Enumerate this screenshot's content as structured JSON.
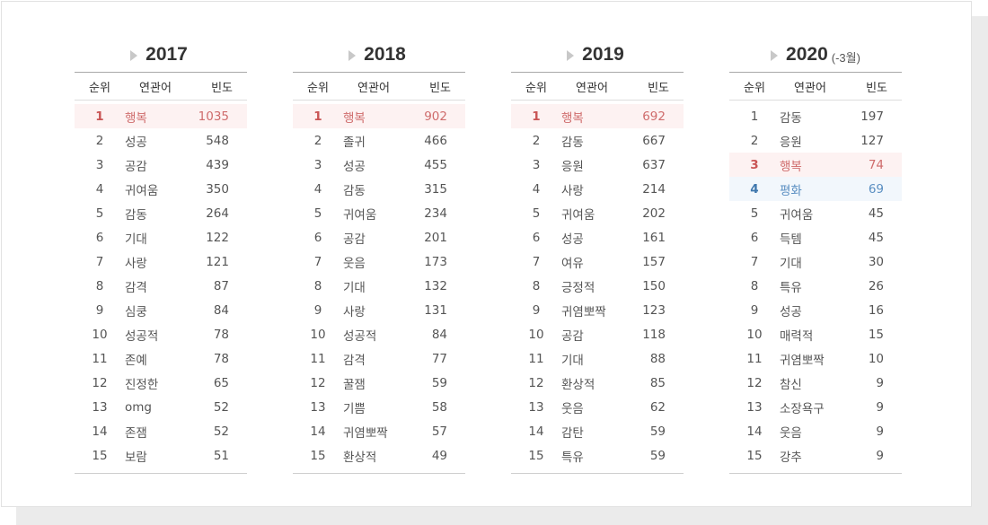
{
  "columns": {
    "rank": "순위",
    "word": "연관어",
    "freq": "빈도"
  },
  "colors": {
    "highlight_red": "#cf6c6c",
    "highlight_blue": "#5b8fc2"
  },
  "panels": [
    {
      "year": "2017",
      "note": "",
      "rows": [
        {
          "rank": "1",
          "word": "행복",
          "freq": "1035",
          "hl": "red"
        },
        {
          "rank": "2",
          "word": "성공",
          "freq": "548"
        },
        {
          "rank": "3",
          "word": "공감",
          "freq": "439"
        },
        {
          "rank": "4",
          "word": "귀여움",
          "freq": "350"
        },
        {
          "rank": "5",
          "word": "감동",
          "freq": "264"
        },
        {
          "rank": "6",
          "word": "기대",
          "freq": "122"
        },
        {
          "rank": "7",
          "word": "사랑",
          "freq": "121"
        },
        {
          "rank": "8",
          "word": "감격",
          "freq": "87"
        },
        {
          "rank": "9",
          "word": "심쿵",
          "freq": "84"
        },
        {
          "rank": "10",
          "word": "성공적",
          "freq": "78"
        },
        {
          "rank": "11",
          "word": "존예",
          "freq": "78"
        },
        {
          "rank": "12",
          "word": "진정한",
          "freq": "65"
        },
        {
          "rank": "13",
          "word": "omg",
          "freq": "52"
        },
        {
          "rank": "14",
          "word": "존잼",
          "freq": "52"
        },
        {
          "rank": "15",
          "word": "보람",
          "freq": "51"
        }
      ]
    },
    {
      "year": "2018",
      "note": "",
      "rows": [
        {
          "rank": "1",
          "word": "행복",
          "freq": "902",
          "hl": "red"
        },
        {
          "rank": "2",
          "word": "졸귀",
          "freq": "466"
        },
        {
          "rank": "3",
          "word": "성공",
          "freq": "455"
        },
        {
          "rank": "4",
          "word": "감동",
          "freq": "315"
        },
        {
          "rank": "5",
          "word": "귀여움",
          "freq": "234"
        },
        {
          "rank": "6",
          "word": "공감",
          "freq": "201"
        },
        {
          "rank": "7",
          "word": "웃음",
          "freq": "173"
        },
        {
          "rank": "8",
          "word": "기대",
          "freq": "132"
        },
        {
          "rank": "9",
          "word": "사랑",
          "freq": "131"
        },
        {
          "rank": "10",
          "word": "성공적",
          "freq": "84"
        },
        {
          "rank": "11",
          "word": "감격",
          "freq": "77"
        },
        {
          "rank": "12",
          "word": "꿀잼",
          "freq": "59"
        },
        {
          "rank": "13",
          "word": "기쁨",
          "freq": "58"
        },
        {
          "rank": "14",
          "word": "귀염뽀짝",
          "freq": "57"
        },
        {
          "rank": "15",
          "word": "환상적",
          "freq": "49"
        }
      ]
    },
    {
      "year": "2019",
      "note": "",
      "rows": [
        {
          "rank": "1",
          "word": "행복",
          "freq": "692",
          "hl": "red"
        },
        {
          "rank": "2",
          "word": "감동",
          "freq": "667"
        },
        {
          "rank": "3",
          "word": "응원",
          "freq": "637"
        },
        {
          "rank": "4",
          "word": "사랑",
          "freq": "214"
        },
        {
          "rank": "5",
          "word": "귀여움",
          "freq": "202"
        },
        {
          "rank": "6",
          "word": "성공",
          "freq": "161"
        },
        {
          "rank": "7",
          "word": "여유",
          "freq": "157"
        },
        {
          "rank": "8",
          "word": "긍정적",
          "freq": "150"
        },
        {
          "rank": "9",
          "word": "귀염뽀짝",
          "freq": "123"
        },
        {
          "rank": "10",
          "word": "공감",
          "freq": "118"
        },
        {
          "rank": "11",
          "word": "기대",
          "freq": "88"
        },
        {
          "rank": "12",
          "word": "환상적",
          "freq": "85"
        },
        {
          "rank": "13",
          "word": "웃음",
          "freq": "62"
        },
        {
          "rank": "14",
          "word": "감탄",
          "freq": "59"
        },
        {
          "rank": "15",
          "word": "특유",
          "freq": "59"
        }
      ]
    },
    {
      "year": "2020",
      "note": "(-3월)",
      "rows": [
        {
          "rank": "1",
          "word": "감동",
          "freq": "197"
        },
        {
          "rank": "2",
          "word": "응원",
          "freq": "127"
        },
        {
          "rank": "3",
          "word": "행복",
          "freq": "74",
          "hl": "red"
        },
        {
          "rank": "4",
          "word": "평화",
          "freq": "69",
          "hl": "blue"
        },
        {
          "rank": "5",
          "word": "귀여움",
          "freq": "45"
        },
        {
          "rank": "6",
          "word": "득템",
          "freq": "45"
        },
        {
          "rank": "7",
          "word": "기대",
          "freq": "30"
        },
        {
          "rank": "8",
          "word": "특유",
          "freq": "26"
        },
        {
          "rank": "9",
          "word": "성공",
          "freq": "16"
        },
        {
          "rank": "10",
          "word": "매력적",
          "freq": "15"
        },
        {
          "rank": "11",
          "word": "귀염뽀짝",
          "freq": "10"
        },
        {
          "rank": "12",
          "word": "참신",
          "freq": "9"
        },
        {
          "rank": "13",
          "word": "소장욕구",
          "freq": "9"
        },
        {
          "rank": "14",
          "word": "웃음",
          "freq": "9"
        },
        {
          "rank": "15",
          "word": "강추",
          "freq": "9"
        }
      ]
    }
  ]
}
